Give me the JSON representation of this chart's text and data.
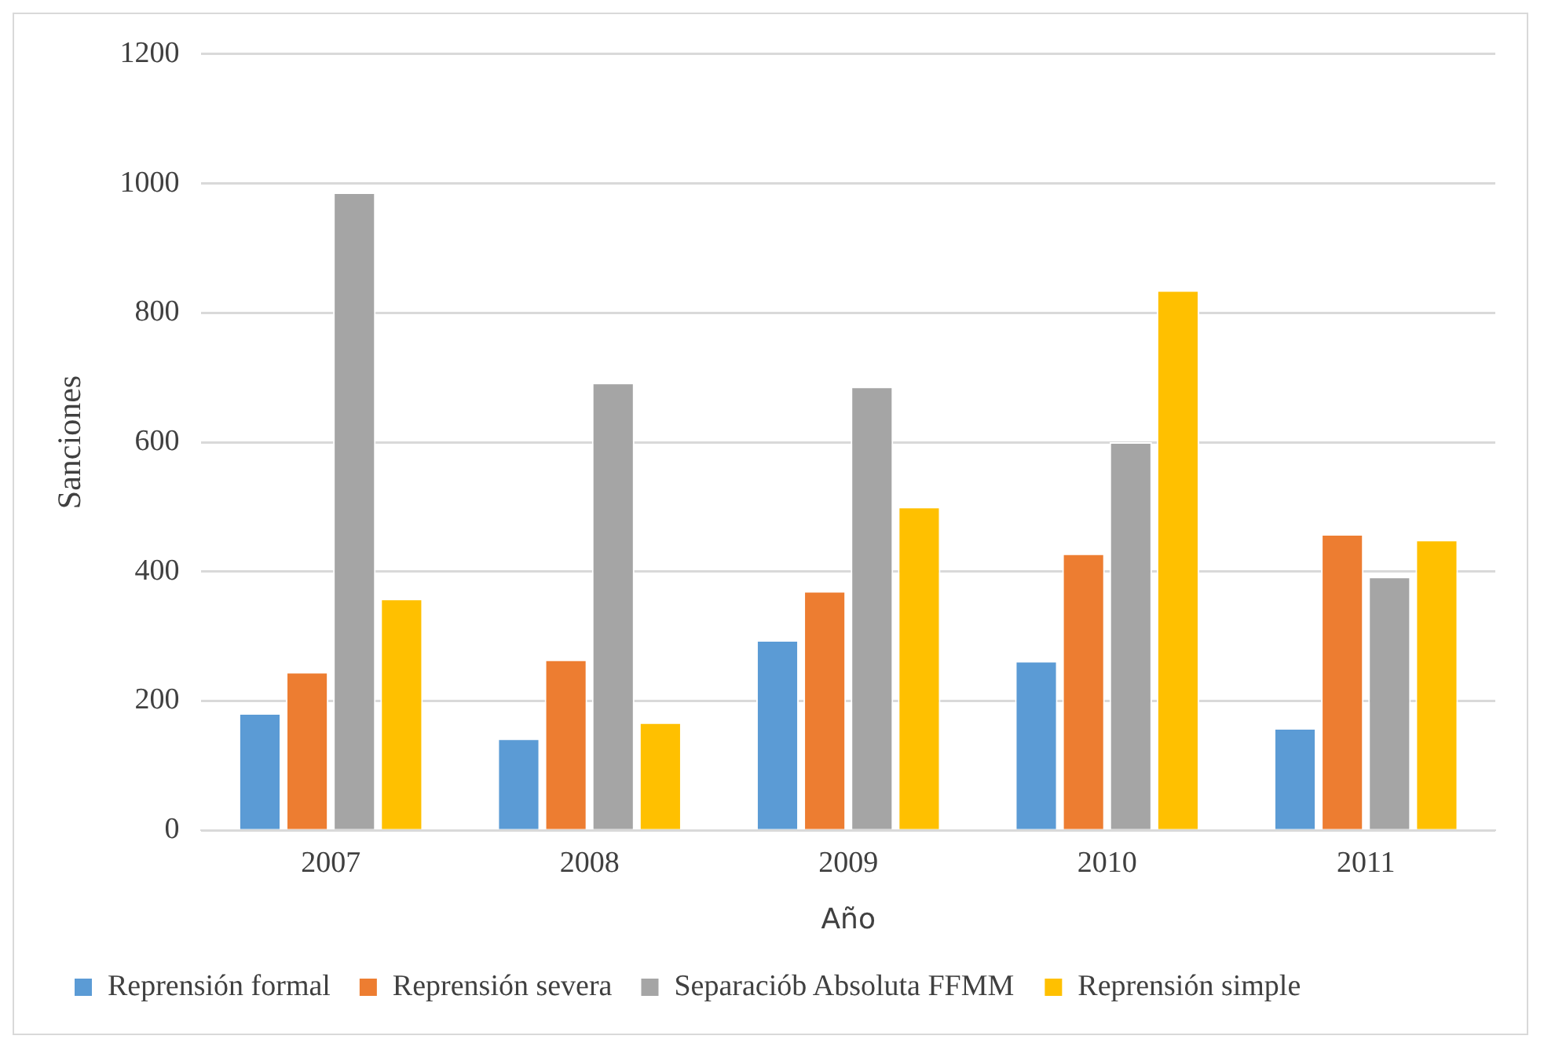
{
  "chart_data": {
    "type": "bar",
    "xlabel": "Año",
    "ylabel": "Sanciones",
    "categories": [
      "2007",
      "2008",
      "2009",
      "2010",
      "2011"
    ],
    "series": [
      {
        "name": "Reprensión formal",
        "color": "#5b9bd5",
        "values": [
          181,
          142,
          294,
          262,
          158
        ]
      },
      {
        "name": "Reprensión severa",
        "color": "#ed7d31",
        "values": [
          245,
          264,
          370,
          428,
          458
        ]
      },
      {
        "name": "Separaciób Absoluta FFMM",
        "color": "#a5a5a5",
        "values": [
          986,
          692,
          686,
          600,
          392
        ]
      },
      {
        "name": "Reprensión simple",
        "color": "#ffc000",
        "values": [
          358,
          167,
          500,
          835,
          449
        ]
      }
    ],
    "ylim": [
      0,
      1200
    ],
    "yticks": [
      0,
      200,
      400,
      600,
      800,
      1000,
      1200
    ],
    "grid": "y",
    "legend": "bottom"
  }
}
